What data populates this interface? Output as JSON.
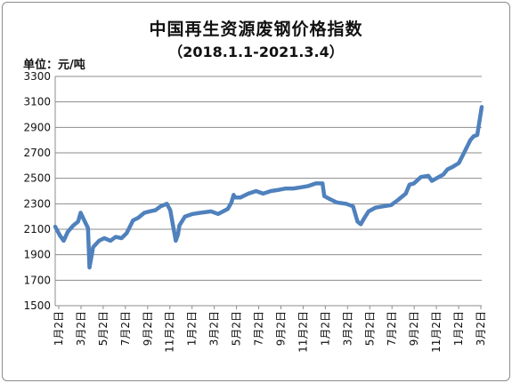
{
  "chart_data": {
    "type": "line",
    "title": "中国再生资源废钢价格指数",
    "subtitle": "（2018.1.1-2021.3.4）",
    "ylabel": "单位：元/吨",
    "xlabel": "",
    "ylim": [
      1500,
      3300
    ],
    "yticks": [
      1500,
      1700,
      1900,
      2100,
      2300,
      2500,
      2700,
      2900,
      3100,
      3300
    ],
    "xticks": [
      "1月2日",
      "3月2日",
      "5月2日",
      "7月2日",
      "9月2日",
      "11月2日",
      "1月2日",
      "3月2日",
      "5月2日",
      "7月2日",
      "9月2日",
      "11月2日",
      "1月2日",
      "3月2日",
      "5月2日",
      "7月2日",
      "9月2日",
      "11月2日",
      "1月2日",
      "3月2日"
    ],
    "grid": true,
    "legend": "none",
    "line_color": "#4f81bd",
    "series": [
      {
        "x": [
          "2018-01-02",
          "2018-01-15",
          "2018-01-25",
          "2018-02-05",
          "2018-02-20",
          "2018-03-05",
          "2018-03-12",
          "2018-03-20",
          "2018-04-01",
          "2018-04-05",
          "2018-04-15",
          "2018-05-01",
          "2018-05-15",
          "2018-06-01",
          "2018-06-15",
          "2018-07-01",
          "2018-07-15",
          "2018-08-01",
          "2018-08-15",
          "2018-09-01",
          "2018-09-15",
          "2018-10-01",
          "2018-10-15",
          "2018-11-01",
          "2018-11-10",
          "2018-11-25",
          "2018-12-01",
          "2018-12-05",
          "2018-12-20",
          "2019-01-10",
          "2019-02-01",
          "2019-03-01",
          "2019-03-20",
          "2019-04-15",
          "2019-04-25",
          "2019-05-01",
          "2019-05-05",
          "2019-05-20",
          "2019-06-10",
          "2019-07-01",
          "2019-07-20",
          "2019-08-10",
          "2019-09-01",
          "2019-09-20",
          "2019-10-10",
          "2019-11-01",
          "2019-11-20",
          "2019-12-10",
          "2019-12-28",
          "2020-01-02",
          "2020-01-15",
          "2020-02-05",
          "2020-03-01",
          "2020-03-20",
          "2020-04-01",
          "2020-04-10",
          "2020-04-20",
          "2020-05-01",
          "2020-05-20",
          "2020-06-10",
          "2020-07-01",
          "2020-07-20",
          "2020-08-10",
          "2020-08-20",
          "2020-09-01",
          "2020-09-20",
          "2020-10-10",
          "2020-10-20",
          "2020-11-01",
          "2020-11-20",
          "2020-12-01",
          "2020-12-15",
          "2021-01-01",
          "2021-01-15",
          "2021-02-01",
          "2021-02-10",
          "2021-02-20",
          "2021-03-04"
        ],
        "values": [
          2120,
          2050,
          2010,
          2080,
          2130,
          2160,
          2230,
          2180,
          2110,
          1800,
          1960,
          2010,
          2030,
          2010,
          2040,
          2030,
          2070,
          2170,
          2190,
          2230,
          2240,
          2250,
          2280,
          2300,
          2250,
          2010,
          2060,
          2130,
          2200,
          2220,
          2230,
          2240,
          2220,
          2260,
          2310,
          2370,
          2350,
          2350,
          2380,
          2400,
          2380,
          2400,
          2410,
          2420,
          2420,
          2430,
          2440,
          2460,
          2460,
          2360,
          2340,
          2310,
          2300,
          2280,
          2160,
          2140,
          2190,
          2240,
          2270,
          2280,
          2290,
          2330,
          2380,
          2450,
          2460,
          2510,
          2520,
          2480,
          2500,
          2530,
          2570,
          2590,
          2620,
          2700,
          2800,
          2830,
          2840,
          3060
        ]
      }
    ]
  }
}
